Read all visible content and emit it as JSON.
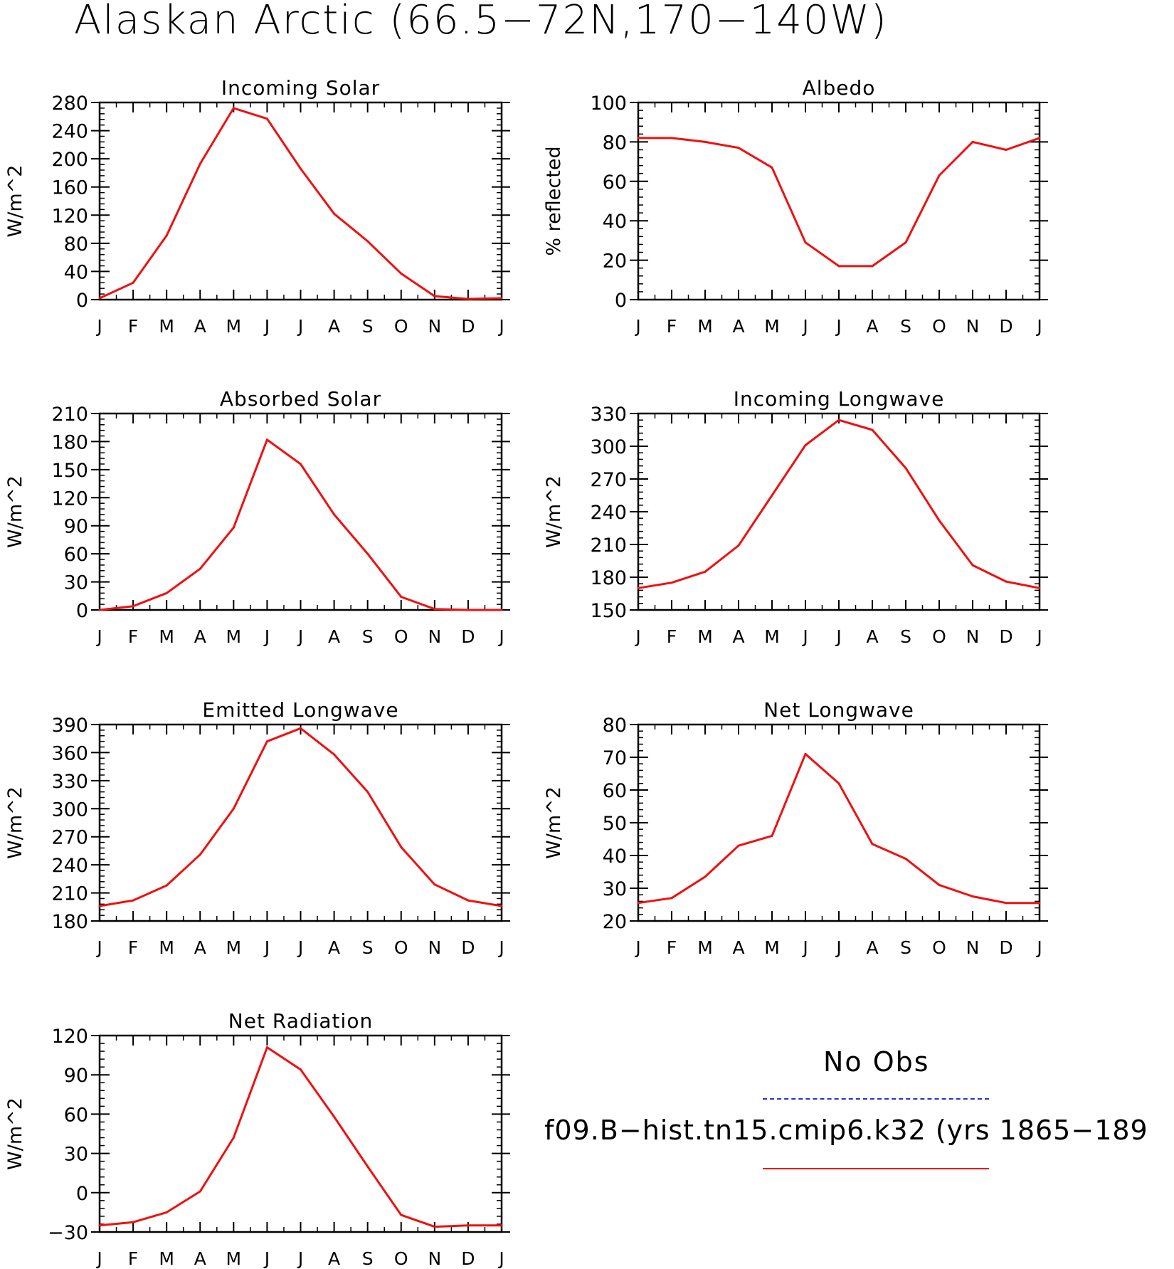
{
  "figure": {
    "title": "Alaskan Arctic (66.5−72N,170−140W)",
    "series_color": "#ee1111",
    "obs_color": "#2233cc"
  },
  "legend": {
    "obs_label": "No Obs",
    "case_label": "f09.B−hist.tn15.cmip6.k32 (yrs 1865−189"
  },
  "chart_data": [
    {
      "type": "line",
      "title": "Incoming Solar",
      "ylabel": "W/m^2",
      "categories": [
        "J",
        "F",
        "M",
        "A",
        "M",
        "J",
        "J",
        "A",
        "S",
        "O",
        "N",
        "D",
        "J"
      ],
      "ylim": [
        0,
        280
      ],
      "yticks": [
        0,
        40,
        80,
        120,
        160,
        200,
        240,
        280
      ],
      "series": [
        {
          "values": [
            2,
            24,
            91,
            193,
            272,
            257,
            186,
            122,
            83,
            37,
            5,
            1,
            2
          ]
        }
      ]
    },
    {
      "type": "line",
      "title": "Albedo",
      "ylabel": "% reflected",
      "categories": [
        "J",
        "F",
        "M",
        "A",
        "M",
        "J",
        "J",
        "A",
        "S",
        "O",
        "N",
        "D",
        "J"
      ],
      "ylim": [
        0,
        100
      ],
      "yticks": [
        0,
        20,
        40,
        60,
        80,
        100
      ],
      "series": [
        {
          "values": [
            82,
            82,
            80,
            77,
            67,
            29,
            17,
            17,
            29,
            63,
            80,
            76,
            82
          ]
        }
      ]
    },
    {
      "type": "line",
      "title": "Absorbed Solar",
      "ylabel": "W/m^2",
      "categories": [
        "J",
        "F",
        "M",
        "A",
        "M",
        "J",
        "J",
        "A",
        "S",
        "O",
        "N",
        "D",
        "J"
      ],
      "ylim": [
        0,
        210
      ],
      "yticks": [
        0,
        30,
        60,
        90,
        120,
        150,
        180,
        210
      ],
      "series": [
        {
          "values": [
            0,
            4,
            18,
            44,
            88,
            182,
            156,
            102,
            60,
            14,
            1,
            0,
            0
          ]
        }
      ]
    },
    {
      "type": "line",
      "title": "Incoming Longwave",
      "ylabel": "W/m^2",
      "categories": [
        "J",
        "F",
        "M",
        "A",
        "M",
        "J",
        "J",
        "A",
        "S",
        "O",
        "N",
        "D",
        "J"
      ],
      "ylim": [
        150,
        330
      ],
      "yticks": [
        150,
        180,
        210,
        240,
        270,
        300,
        330
      ],
      "series": [
        {
          "values": [
            170,
            175,
            185,
            209,
            255,
            301,
            324,
            315,
            280,
            232,
            191,
            176,
            170
          ]
        }
      ]
    },
    {
      "type": "line",
      "title": "Emitted Longwave",
      "ylabel": "W/m^2",
      "categories": [
        "J",
        "F",
        "M",
        "A",
        "M",
        "J",
        "J",
        "A",
        "S",
        "O",
        "N",
        "D",
        "J"
      ],
      "ylim": [
        180,
        390
      ],
      "yticks": [
        180,
        210,
        240,
        270,
        300,
        330,
        360,
        390
      ],
      "series": [
        {
          "values": [
            196,
            202,
            218,
            251,
            300,
            372,
            386,
            358,
            318,
            259,
            219,
            202,
            196
          ]
        }
      ]
    },
    {
      "type": "line",
      "title": "Net Longwave",
      "ylabel": "W/m^2",
      "categories": [
        "J",
        "F",
        "M",
        "A",
        "M",
        "J",
        "J",
        "A",
        "S",
        "O",
        "N",
        "D",
        "J"
      ],
      "ylim": [
        20,
        80
      ],
      "yticks": [
        20,
        30,
        40,
        50,
        60,
        70,
        80
      ],
      "series": [
        {
          "values": [
            25.5,
            27,
            33.5,
            43,
            46,
            71,
            62,
            43.5,
            39,
            31,
            27.5,
            25.5,
            25.5
          ]
        }
      ]
    },
    {
      "type": "line",
      "title": "Net Radiation",
      "ylabel": "W/m^2",
      "categories": [
        "J",
        "F",
        "M",
        "A",
        "M",
        "J",
        "J",
        "A",
        "S",
        "O",
        "N",
        "D",
        "J"
      ],
      "ylim": [
        -30,
        120
      ],
      "yticks": [
        -30,
        0,
        30,
        60,
        90,
        120
      ],
      "series": [
        {
          "values": [
            -25,
            -22.5,
            -15,
            1,
            42,
            111,
            94,
            58,
            20,
            -17,
            -26,
            -25,
            -25
          ]
        }
      ]
    }
  ]
}
